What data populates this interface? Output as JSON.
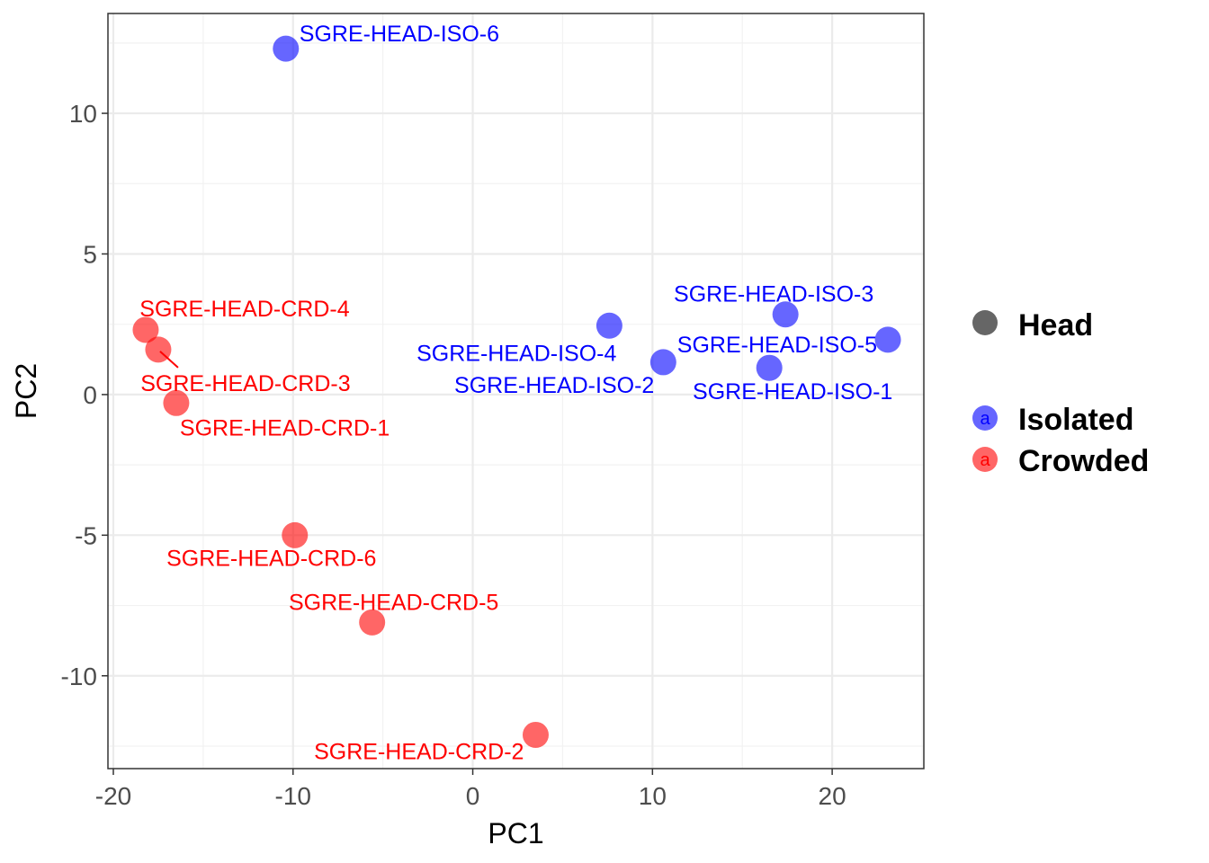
{
  "chart_data": {
    "type": "scatter",
    "xlabel": "PC1",
    "ylabel": "PC2",
    "xlim": [
      -20.3,
      25.1
    ],
    "ylim": [
      -13.3,
      13.55
    ],
    "x_ticks": [
      -20,
      -10,
      0,
      10,
      20
    ],
    "y_ticks": [
      -10,
      -5,
      0,
      5,
      10
    ],
    "grid": true,
    "colors": {
      "Isolated": "#0000ff",
      "Crowded": "#ff0000"
    },
    "point_opacity": 0.6,
    "points": [
      {
        "label": "SGRE-HEAD-ISO-6",
        "group": "Isolated",
        "x": -10.4,
        "y": 12.3
      },
      {
        "label": "SGRE-HEAD-ISO-4",
        "group": "Isolated",
        "x": 7.6,
        "y": 2.45
      },
      {
        "label": "SGRE-HEAD-ISO-3",
        "group": "Isolated",
        "x": 17.4,
        "y": 2.85
      },
      {
        "label": "SGRE-HEAD-ISO-5",
        "group": "Isolated",
        "x": 23.1,
        "y": 1.95
      },
      {
        "label": "SGRE-HEAD-ISO-2",
        "group": "Isolated",
        "x": 10.6,
        "y": 1.15
      },
      {
        "label": "SGRE-HEAD-ISO-1",
        "group": "Isolated",
        "x": 16.5,
        "y": 0.95
      },
      {
        "label": "SGRE-HEAD-CRD-4",
        "group": "Crowded",
        "x": -18.2,
        "y": 2.3
      },
      {
        "label": "SGRE-HEAD-CRD-3",
        "group": "Crowded",
        "x": -17.5,
        "y": 1.6
      },
      {
        "label": "SGRE-HEAD-CRD-1",
        "group": "Crowded",
        "x": -16.5,
        "y": -0.3
      },
      {
        "label": "SGRE-HEAD-CRD-6",
        "group": "Crowded",
        "x": -9.9,
        "y": -5.0
      },
      {
        "label": "SGRE-HEAD-CRD-5",
        "group": "Crowded",
        "x": -5.6,
        "y": -8.1
      },
      {
        "label": "SGRE-HEAD-CRD-2",
        "group": "Crowded",
        "x": 3.5,
        "y": -12.1
      }
    ],
    "legend": {
      "position": "right",
      "shape_title": "Head",
      "glyph": "a",
      "groups": [
        "Isolated",
        "Crowded"
      ]
    }
  }
}
